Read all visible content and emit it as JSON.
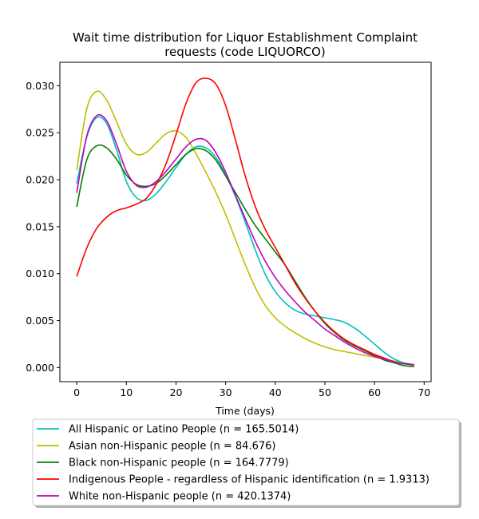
{
  "chart_data": {
    "type": "line",
    "title": "Wait time distribution  for Liquor Establishment Complaint requests (code LIQUORCO)",
    "title_lines": [
      "Wait time distribution  for Liquor Establishment Complaint",
      "requests (code LIQUORCO)"
    ],
    "xlabel": "Time (days)",
    "ylabel": "",
    "xlim": [
      -3.4,
      71.4
    ],
    "ylim": [
      -0.0015,
      0.0325
    ],
    "xticks": [
      0,
      10,
      20,
      30,
      40,
      50,
      60,
      70
    ],
    "xtick_labels": [
      "0",
      "10",
      "20",
      "30",
      "40",
      "50",
      "60",
      "70"
    ],
    "yticks": [
      0.0,
      0.005,
      0.01,
      0.015,
      0.02,
      0.025,
      0.03
    ],
    "ytick_labels": [
      "0.000",
      "0.005",
      "0.010",
      "0.015",
      "0.020",
      "0.025",
      "0.030"
    ],
    "grid": false,
    "legend_position": "below",
    "series": [
      {
        "name": "All Hispanic or Latino People (n = 165.5014)",
        "color": "#00bfbf",
        "x": [
          0,
          2,
          4,
          6,
          8,
          10,
          12,
          14,
          16,
          18,
          20,
          22,
          24,
          26,
          28,
          30,
          32,
          34,
          36,
          38,
          40,
          42,
          44,
          46,
          48,
          50,
          52,
          54,
          56,
          58,
          60,
          62,
          64,
          66,
          68
        ],
        "y": [
          0.0196,
          0.0245,
          0.0266,
          0.026,
          0.0232,
          0.0198,
          0.0181,
          0.0178,
          0.0185,
          0.0198,
          0.0213,
          0.0227,
          0.0235,
          0.0234,
          0.0224,
          0.0205,
          0.0182,
          0.0154,
          0.0125,
          0.0099,
          0.0081,
          0.0069,
          0.0061,
          0.0057,
          0.0055,
          0.0053,
          0.0051,
          0.0048,
          0.0042,
          0.0034,
          0.0025,
          0.0016,
          0.0009,
          0.0005,
          0.0003
        ]
      },
      {
        "name": "Asian non-Hispanic people (n = 84.676)",
        "color": "#bfbf00",
        "x": [
          0,
          2,
          4,
          6,
          8,
          10,
          12,
          14,
          16,
          18,
          20,
          22,
          24,
          26,
          28,
          30,
          32,
          34,
          36,
          38,
          40,
          42,
          44,
          46,
          48,
          50,
          52,
          54,
          56,
          58,
          60,
          62,
          64,
          66,
          68
        ],
        "y": [
          0.021,
          0.0275,
          0.0294,
          0.0285,
          0.0262,
          0.0238,
          0.0227,
          0.0229,
          0.0239,
          0.0249,
          0.0252,
          0.0245,
          0.0228,
          0.0208,
          0.0187,
          0.0163,
          0.0136,
          0.0109,
          0.0085,
          0.0066,
          0.0053,
          0.0044,
          0.0037,
          0.0031,
          0.0026,
          0.0022,
          0.0019,
          0.0017,
          0.0015,
          0.0013,
          0.0011,
          0.0009,
          0.0007,
          0.0004,
          0.0002
        ]
      },
      {
        "name": "Black non-Hispanic people (n = 164.7779)",
        "color": "#008000",
        "x": [
          0,
          2,
          4,
          6,
          8,
          10,
          12,
          14,
          16,
          18,
          20,
          22,
          24,
          26,
          28,
          30,
          32,
          34,
          36,
          38,
          40,
          42,
          44,
          46,
          48,
          50,
          52,
          54,
          56,
          58,
          60,
          62,
          64,
          66,
          68
        ],
        "y": [
          0.0171,
          0.0221,
          0.0236,
          0.0234,
          0.0222,
          0.0205,
          0.0195,
          0.0193,
          0.0196,
          0.0205,
          0.0216,
          0.0227,
          0.0233,
          0.0231,
          0.0221,
          0.0204,
          0.0186,
          0.0168,
          0.0151,
          0.0137,
          0.0123,
          0.0109,
          0.0092,
          0.0075,
          0.006,
          0.0047,
          0.0037,
          0.0029,
          0.0023,
          0.0018,
          0.0013,
          0.0008,
          0.0005,
          0.0002,
          0.0001
        ]
      },
      {
        "name": "Indigenous People - regardless of Hispanic identification (n = 1.9313)",
        "color": "#ff0000",
        "x": [
          0,
          2,
          4,
          6,
          8,
          10,
          12,
          14,
          16,
          18,
          20,
          22,
          24,
          26,
          28,
          30,
          32,
          34,
          36,
          38,
          40,
          42,
          44,
          46,
          48,
          50,
          52,
          54,
          56,
          58,
          60,
          62,
          64,
          66,
          68
        ],
        "y": [
          0.0097,
          0.0127,
          0.0148,
          0.016,
          0.0167,
          0.017,
          0.0174,
          0.018,
          0.0195,
          0.0217,
          0.0248,
          0.0281,
          0.0303,
          0.0308,
          0.0302,
          0.0279,
          0.0242,
          0.0203,
          0.0171,
          0.0147,
          0.0128,
          0.0109,
          0.009,
          0.0074,
          0.006,
          0.0048,
          0.0038,
          0.003,
          0.0024,
          0.0019,
          0.0014,
          0.001,
          0.0006,
          0.0004,
          0.0003
        ]
      },
      {
        "name": "White non-Hispanic people (n = 420.1374)",
        "color": "#bf00bf",
        "x": [
          0,
          2,
          4,
          6,
          8,
          10,
          12,
          14,
          16,
          18,
          20,
          22,
          24,
          26,
          28,
          30,
          32,
          34,
          36,
          38,
          40,
          42,
          44,
          46,
          48,
          50,
          52,
          54,
          56,
          58,
          60,
          62,
          64,
          66,
          68
        ],
        "y": [
          0.0186,
          0.0246,
          0.0268,
          0.0263,
          0.0238,
          0.0209,
          0.0194,
          0.0192,
          0.0198,
          0.0209,
          0.0222,
          0.0235,
          0.0243,
          0.0242,
          0.0229,
          0.0208,
          0.0183,
          0.0158,
          0.0134,
          0.0113,
          0.0096,
          0.0082,
          0.007,
          0.0059,
          0.005,
          0.0041,
          0.0034,
          0.0027,
          0.0021,
          0.0016,
          0.0012,
          0.0009,
          0.0006,
          0.0004,
          0.0003
        ]
      }
    ]
  }
}
